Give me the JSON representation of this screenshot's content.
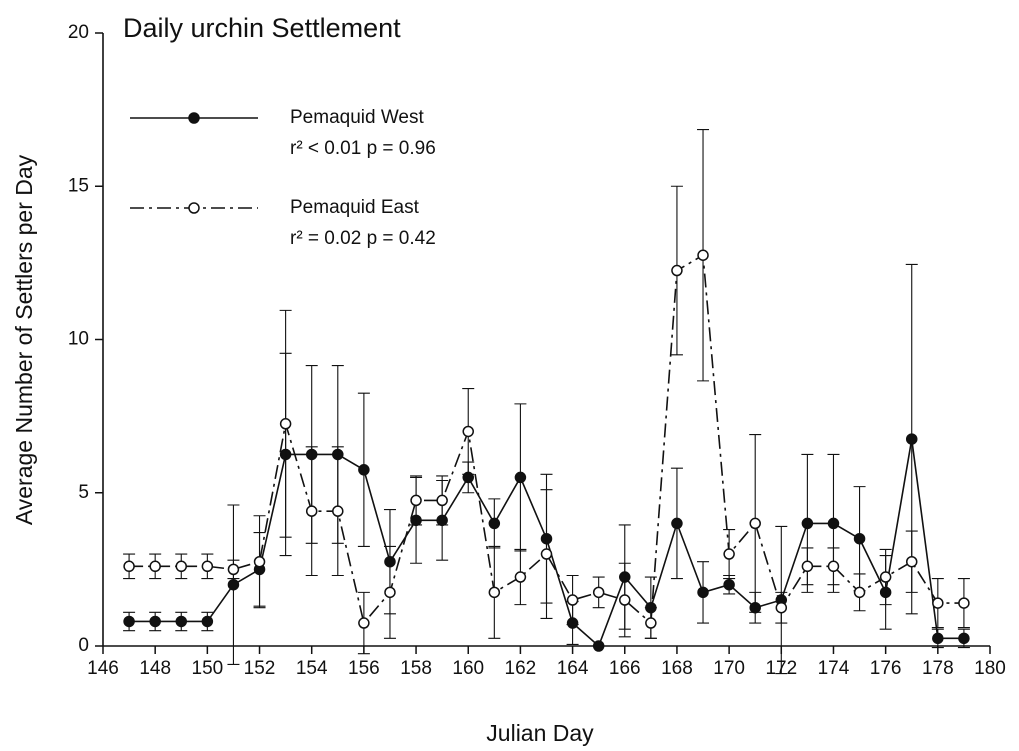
{
  "chart_data": {
    "type": "line",
    "title": "Daily urchin Settlement",
    "xlabel": "Julian Day",
    "ylabel": "Average Number of Settlers per Day",
    "x": [
      147,
      148,
      149,
      150,
      151,
      152,
      153,
      154,
      155,
      156,
      157,
      158,
      159,
      160,
      161,
      162,
      163,
      164,
      165,
      166,
      167,
      168,
      169,
      170,
      171,
      172,
      173,
      174,
      175,
      176,
      177,
      178,
      179
    ],
    "series": [
      {
        "name": "Pemaquid West",
        "annotation": "r² < 0.01  p = 0.96",
        "color": "#111111",
        "marker": "filled",
        "linestyle": "solid",
        "values": [
          0.8,
          0.8,
          0.8,
          0.8,
          2.0,
          2.5,
          6.25,
          6.25,
          6.25,
          5.75,
          2.75,
          4.1,
          4.1,
          5.5,
          4.0,
          5.5,
          3.5,
          0.75,
          0,
          2.25,
          1.25,
          4.0,
          1.75,
          2.0,
          1.25,
          1.5,
          4.0,
          4.0,
          3.5,
          1.75,
          6.75,
          0.25,
          0.25
        ],
        "errors": [
          0.3,
          0.3,
          0.3,
          0.3,
          2.6,
          1.2,
          3.3,
          2.9,
          2.9,
          2.5,
          1.7,
          1.4,
          1.3,
          0.5,
          0.8,
          2.4,
          2.1,
          0.7,
          0,
          1.7,
          1.0,
          1.8,
          1.0,
          0.3,
          0.5,
          2.4,
          2.25,
          2.25,
          1.7,
          1.2,
          5.7,
          0.3,
          0.3
        ]
      },
      {
        "name": "Pemaquid East",
        "annotation": "r² = 0.02  p = 0.42",
        "color": "#111111",
        "marker": "open",
        "linestyle": "dashdot",
        "values": [
          2.6,
          2.6,
          2.6,
          2.6,
          2.5,
          2.75,
          7.25,
          4.4,
          4.4,
          0.75,
          1.75,
          4.75,
          4.75,
          7.0,
          1.75,
          2.25,
          3.0,
          1.5,
          1.75,
          1.5,
          0.75,
          12.25,
          12.75,
          3.0,
          4.0,
          1.25,
          2.6,
          2.6,
          1.75,
          2.25,
          2.75,
          1.4,
          1.4
        ],
        "errors": [
          0.4,
          0.4,
          0.4,
          0.4,
          0.3,
          1.5,
          3.7,
          2.1,
          2.1,
          1.0,
          1.5,
          0.8,
          0.8,
          1.4,
          1.5,
          0.9,
          2.1,
          0.8,
          0.5,
          1.2,
          0.5,
          2.75,
          4.1,
          0.8,
          2.9,
          0.5,
          0.6,
          0.6,
          0.6,
          0.9,
          1.0,
          0.8,
          0.8
        ]
      }
    ],
    "xlim": [
      146,
      180
    ],
    "xticks": [
      146,
      148,
      150,
      152,
      154,
      156,
      158,
      160,
      162,
      164,
      166,
      168,
      170,
      172,
      174,
      176,
      178,
      180
    ],
    "ylim": [
      0,
      20
    ],
    "yticks": [
      0,
      5,
      10,
      15,
      20
    ]
  }
}
